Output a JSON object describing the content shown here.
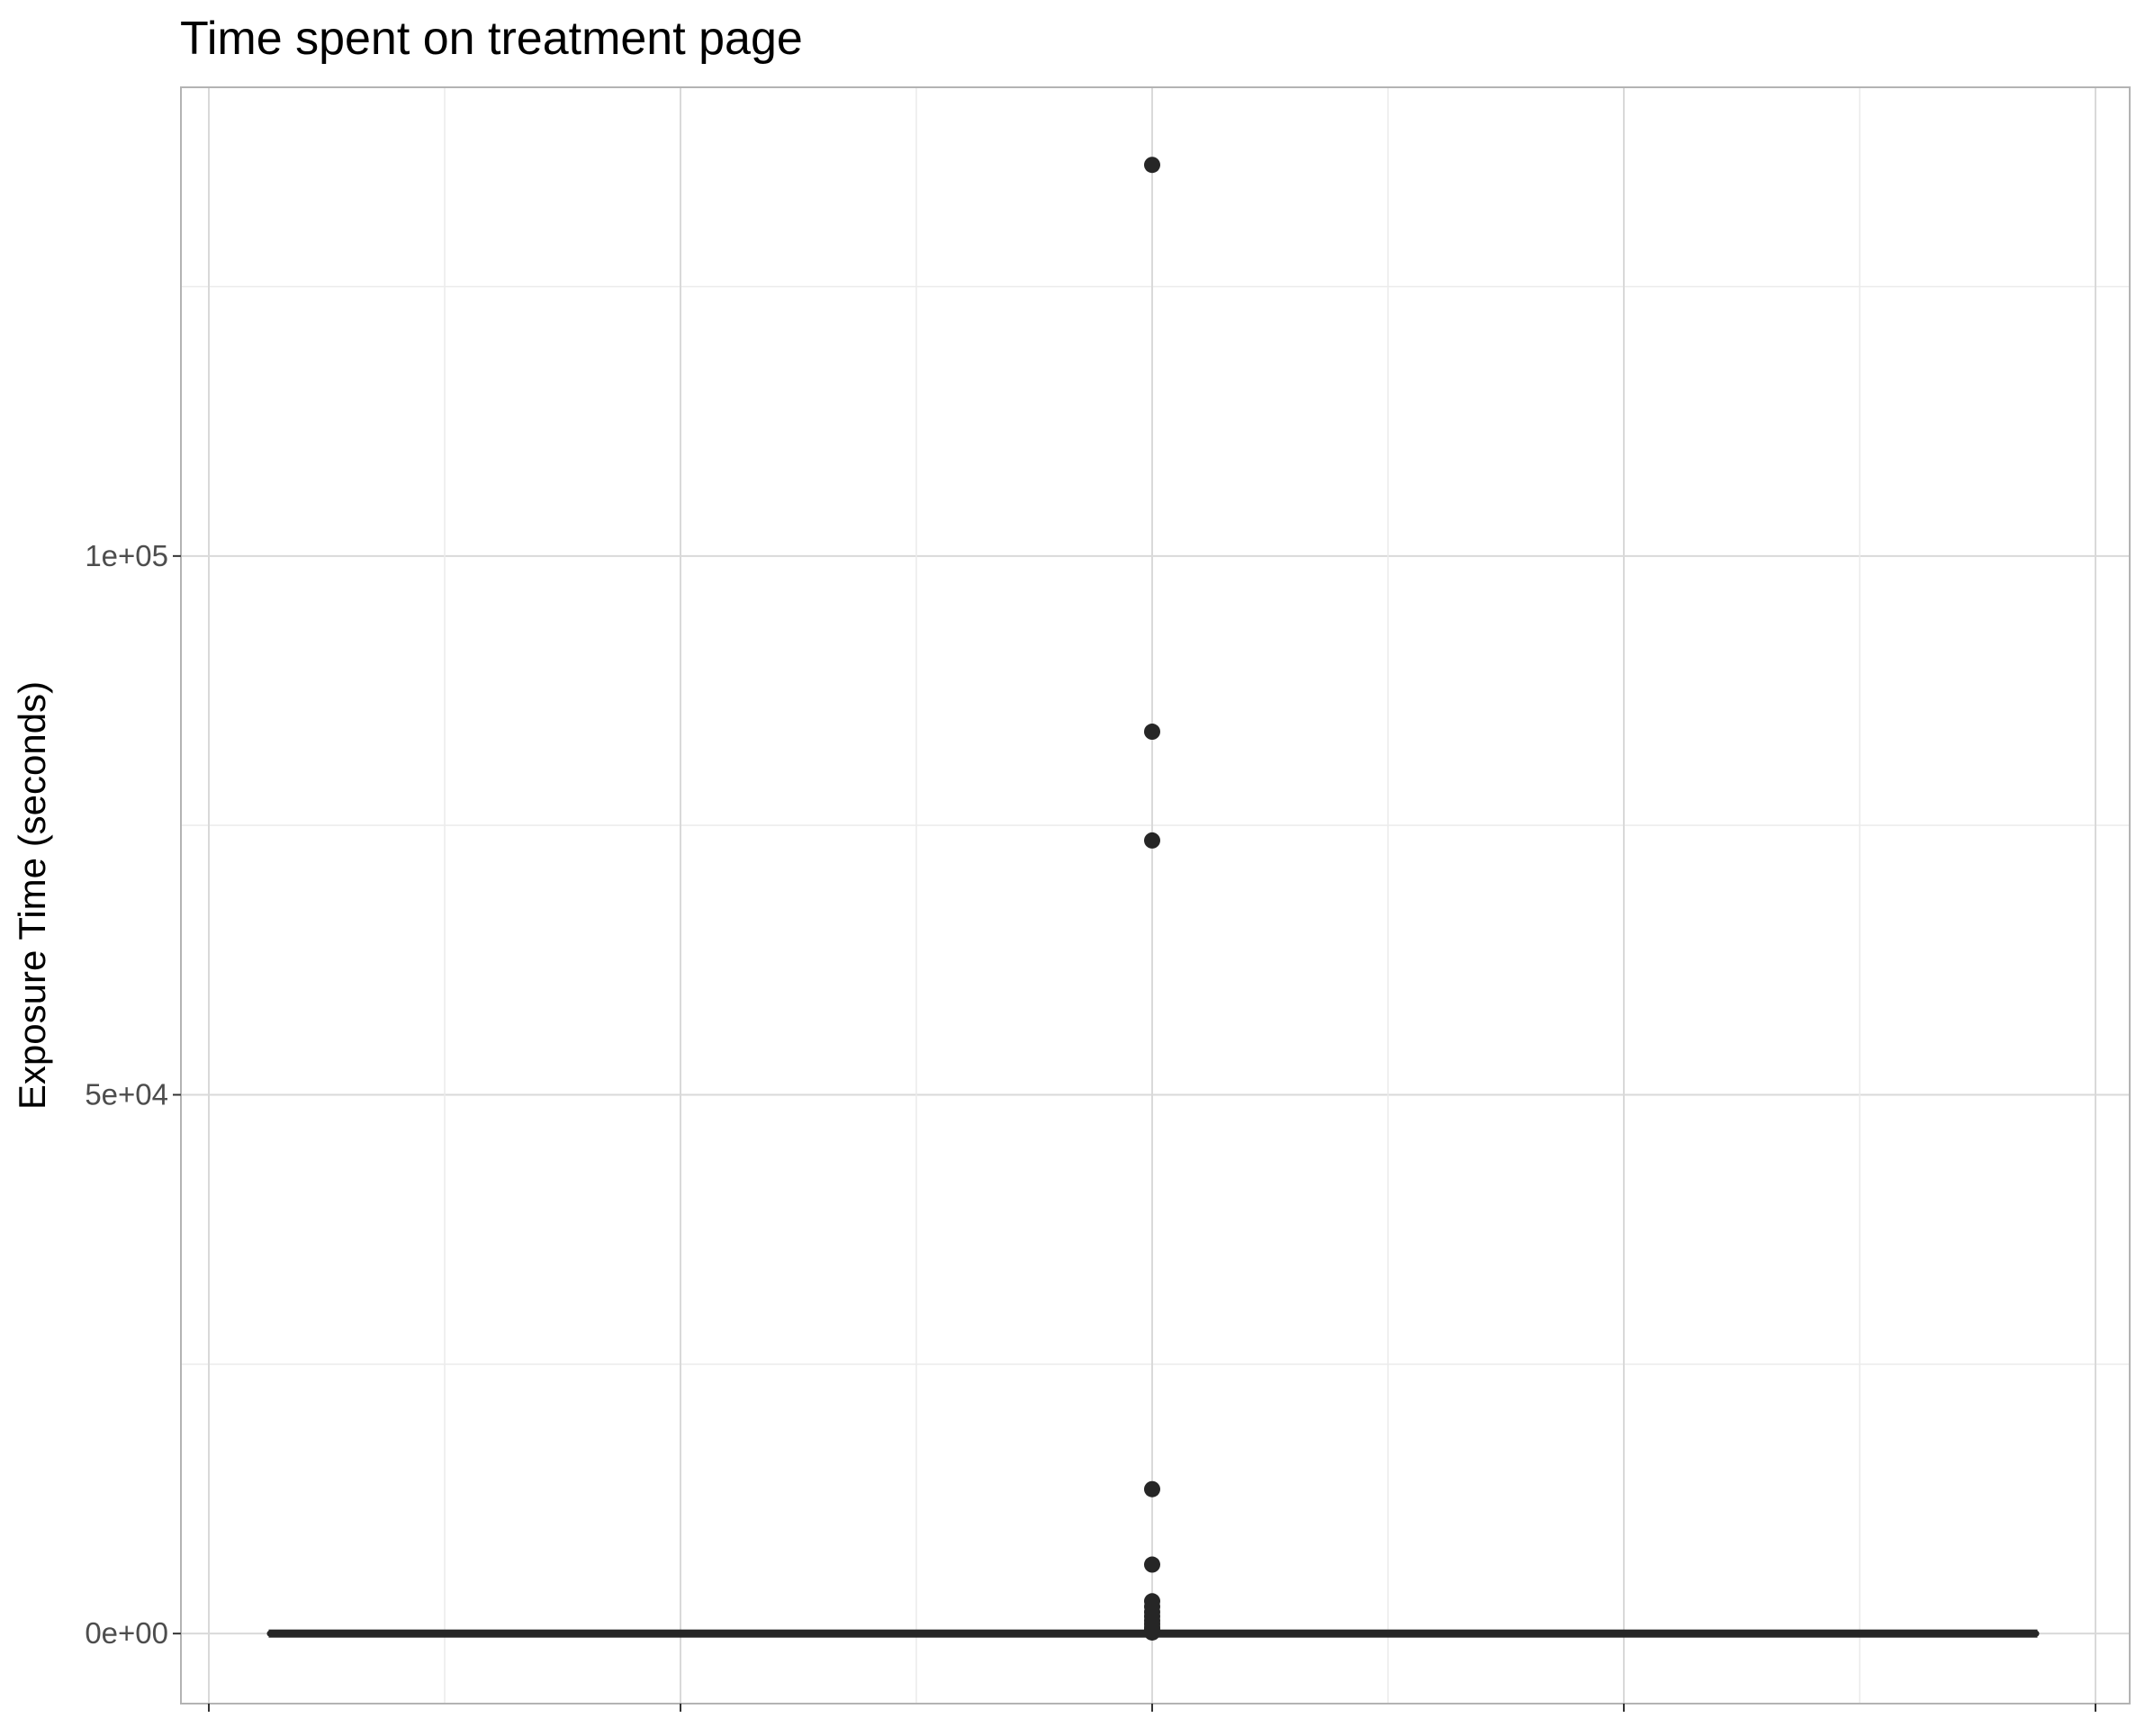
{
  "chart_data": {
    "type": "boxplot",
    "title": "Time spent on treatment page",
    "xlabel": "",
    "ylabel": "Exposure Time (seconds)",
    "ylim": [
      -6500,
      143500
    ],
    "y_ticks": [
      {
        "value": 0,
        "label": "0e+00"
      },
      {
        "value": 50000,
        "label": "5e+04"
      },
      {
        "value": 100000,
        "label": "1e+05"
      }
    ],
    "y_minor_ticks": [
      25000,
      75000,
      125000
    ],
    "x_gridlines": 9,
    "grid": true,
    "box": {
      "min": 0,
      "q1": 0,
      "median": 0,
      "q3": 0,
      "max": 0
    },
    "outliers": [
      136300,
      83700,
      73600,
      13400,
      6400,
      3000,
      2500,
      2000,
      1600,
      1200,
      900,
      600,
      400,
      200,
      100
    ],
    "colors": {
      "background": "#ffffff",
      "grid_major": "#d9d9d9",
      "grid_minor": "#ebebeb",
      "panel_border": "#b3b3b3",
      "box": "#262626",
      "outlier": "#262626",
      "tick_label": "#4d4d4d"
    }
  }
}
